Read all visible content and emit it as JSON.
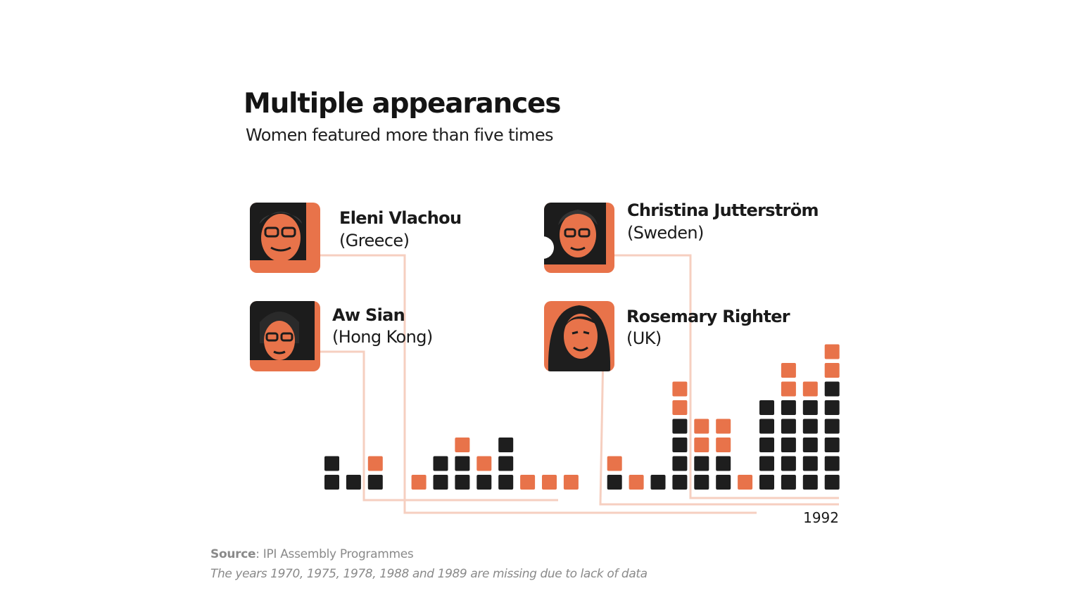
{
  "header": {
    "title": "Multiple appearances",
    "subtitle": "Women featured more than five times"
  },
  "people": [
    {
      "name": "Eleni Vlachou",
      "country": "(Greece)",
      "icon": "portrait-photo"
    },
    {
      "name": "Aw Sian",
      "country": "(Hong Kong)",
      "icon": "portrait-photo"
    },
    {
      "name": "Christina Jutterström",
      "country": "(Sweden)",
      "icon": "portrait-photo"
    },
    {
      "name": "Rosemary Righter",
      "country": "(UK)",
      "icon": "portrait-photo"
    }
  ],
  "chart_data": {
    "type": "bar",
    "x_label_shown": "1992",
    "columns": [
      {
        "dark": 2,
        "orange": 0
      },
      {
        "dark": 1,
        "orange": 0
      },
      {
        "dark": 1,
        "orange": 1
      },
      null,
      {
        "dark": 0,
        "orange": 1
      },
      {
        "dark": 2,
        "orange": 0
      },
      {
        "dark": 2,
        "orange": 1
      },
      {
        "dark": 1,
        "orange": 1
      },
      {
        "dark": 3,
        "orange": 0
      },
      {
        "dark": 0,
        "orange": 1
      },
      {
        "dark": 0,
        "orange": 1
      },
      {
        "dark": 0,
        "orange": 1
      },
      null,
      {
        "dark": 1,
        "orange": 1
      },
      {
        "dark": 0,
        "orange": 1
      },
      {
        "dark": 1,
        "orange": 0
      },
      {
        "dark": 4,
        "orange": 2
      },
      {
        "dark": 2,
        "orange": 2
      },
      {
        "dark": 2,
        "orange": 2
      },
      {
        "dark": 0,
        "orange": 1
      },
      {
        "dark": 5,
        "orange": 0
      },
      {
        "dark": 5,
        "orange": 2
      },
      {
        "dark": 5,
        "orange": 1
      },
      {
        "dark": 6,
        "orange": 2
      }
    ],
    "colors": {
      "dark": "#1e1e1e",
      "orange": "#e8734a",
      "connector": "#f6cfc0"
    }
  },
  "footer": {
    "source_label": "Source",
    "source_text": ": IPI Assembly Programmes",
    "note": "The years 1970, 1975, 1978, 1988 and 1989 are missing due to lack of data"
  }
}
